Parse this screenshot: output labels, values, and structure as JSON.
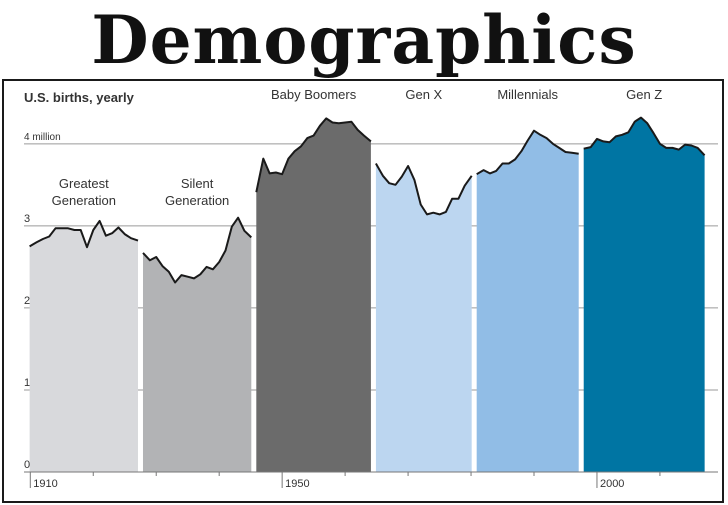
{
  "page_title": "Demographics",
  "chart_data": {
    "type": "area",
    "title": "U.S. births, yearly",
    "ylabel": "",
    "xlabel": "",
    "ylim": [
      0,
      4.4
    ],
    "xlim": [
      1909,
      2017
    ],
    "y_ticks": [
      {
        "value": 0,
        "label": "0"
      },
      {
        "value": 1,
        "label": "1"
      },
      {
        "value": 2,
        "label": "2"
      },
      {
        "value": 3,
        "label": "3"
      },
      {
        "value": 4,
        "label": "4 million"
      }
    ],
    "x_ticks": [
      {
        "value": 1910,
        "label": "1910"
      },
      {
        "value": 1950,
        "label": "1950"
      },
      {
        "value": 2000,
        "label": "2000"
      }
    ],
    "x_minor_ticks": [
      1920,
      1930,
      1940,
      1960,
      1970,
      1980,
      1990,
      2010
    ],
    "grid": true,
    "series": [
      {
        "name": "Greatest Generation",
        "label_lines": [
          "Greatest",
          "Generation"
        ],
        "color": "#d8d9dc",
        "x": [
          1910,
          1911,
          1912,
          1913,
          1914,
          1915,
          1916,
          1917,
          1918,
          1919,
          1920,
          1921,
          1922,
          1923,
          1924,
          1925,
          1926,
          1927
        ],
        "values": [
          2.75,
          2.8,
          2.84,
          2.87,
          2.97,
          2.97,
          2.97,
          2.95,
          2.95,
          2.74,
          2.95,
          3.06,
          2.88,
          2.91,
          2.98,
          2.9,
          2.85,
          2.82
        ]
      },
      {
        "name": "Silent Generation",
        "label_lines": [
          "Silent",
          "Generation"
        ],
        "color": "#b2b3b5",
        "x": [
          1928,
          1929,
          1930,
          1931,
          1932,
          1933,
          1934,
          1935,
          1936,
          1937,
          1938,
          1939,
          1940,
          1941,
          1942,
          1943,
          1944,
          1945
        ],
        "values": [
          2.67,
          2.58,
          2.62,
          2.51,
          2.44,
          2.31,
          2.4,
          2.38,
          2.36,
          2.41,
          2.5,
          2.47,
          2.56,
          2.7,
          2.99,
          3.1,
          2.94,
          2.86
        ]
      },
      {
        "name": "Baby Boomers",
        "label_lines": [
          "Baby Boomers"
        ],
        "color": "#6b6b6b",
        "x": [
          1946,
          1947,
          1948,
          1949,
          1950,
          1951,
          1952,
          1953,
          1954,
          1955,
          1956,
          1957,
          1958,
          1959,
          1960,
          1961,
          1962,
          1963,
          1964
        ],
        "values": [
          3.41,
          3.82,
          3.64,
          3.65,
          3.63,
          3.82,
          3.91,
          3.97,
          4.07,
          4.1,
          4.22,
          4.31,
          4.26,
          4.25,
          4.26,
          4.27,
          4.17,
          4.1,
          4.03
        ]
      },
      {
        "name": "Gen X",
        "label_lines": [
          "Gen X"
        ],
        "color": "#bcd6f0",
        "x": [
          1965,
          1966,
          1967,
          1968,
          1969,
          1970,
          1971,
          1972,
          1973,
          1974,
          1975,
          1976,
          1977,
          1978,
          1979,
          1980
        ],
        "values": [
          3.76,
          3.61,
          3.52,
          3.5,
          3.6,
          3.73,
          3.56,
          3.26,
          3.14,
          3.16,
          3.14,
          3.17,
          3.33,
          3.33,
          3.49,
          3.61
        ]
      },
      {
        "name": "Millennials",
        "label_lines": [
          "Millennials"
        ],
        "color": "#91bde6",
        "x": [
          1981,
          1982,
          1983,
          1984,
          1985,
          1986,
          1987,
          1988,
          1989,
          1990,
          1991,
          1992,
          1993,
          1994,
          1995,
          1996,
          1997
        ],
        "values": [
          3.63,
          3.68,
          3.64,
          3.67,
          3.76,
          3.76,
          3.81,
          3.91,
          4.04,
          4.16,
          4.11,
          4.07,
          4.0,
          3.95,
          3.9,
          3.89,
          3.88
        ]
      },
      {
        "name": "Gen Z",
        "label_lines": [
          "Gen Z"
        ],
        "color": "#0075a3",
        "x": [
          1998,
          1999,
          2000,
          2001,
          2002,
          2003,
          2004,
          2005,
          2006,
          2007,
          2008,
          2009,
          2010,
          2011,
          2012,
          2013,
          2014,
          2015,
          2016,
          2017
        ],
        "values": [
          3.94,
          3.96,
          4.06,
          4.03,
          4.02,
          4.09,
          4.11,
          4.14,
          4.27,
          4.32,
          4.25,
          4.13,
          4.0,
          3.95,
          3.95,
          3.93,
          3.99,
          3.98,
          3.95,
          3.86
        ]
      }
    ]
  }
}
